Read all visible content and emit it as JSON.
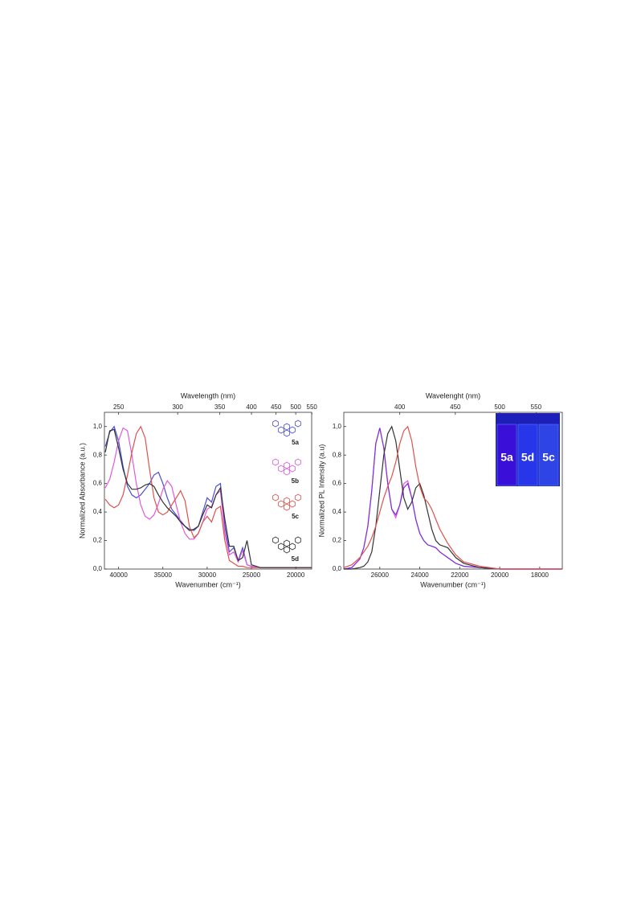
{
  "chart_data": [
    {
      "type": "line",
      "xlabel": "Wavenumber (cm⁻¹)",
      "ylabel": "Normalized Absorbance (a.u.)",
      "x2label": "Wavelength (nm)",
      "x": [
        41500,
        41000,
        40500,
        40000,
        39500,
        39000,
        38500,
        38000,
        37500,
        37000,
        36500,
        36000,
        35500,
        35000,
        34500,
        34000,
        33500,
        33000,
        32500,
        32000,
        31500,
        31000,
        30500,
        30000,
        29500,
        29000,
        28500,
        28000,
        27500,
        27000,
        26500,
        26000,
        25500,
        25000,
        24000,
        22000,
        20000,
        18200
      ],
      "series": [
        {
          "name": "5a",
          "color": "#4b4fd8",
          "values": [
            0.86,
            0.96,
            1.0,
            0.9,
            0.72,
            0.58,
            0.52,
            0.5,
            0.52,
            0.56,
            0.6,
            0.66,
            0.68,
            0.6,
            0.5,
            0.42,
            0.38,
            0.34,
            0.3,
            0.28,
            0.27,
            0.3,
            0.4,
            0.5,
            0.47,
            0.58,
            0.6,
            0.3,
            0.12,
            0.15,
            0.06,
            0.15,
            0.03,
            0.02,
            0.01,
            0.01,
            0.01,
            0.01
          ]
        },
        {
          "name": "5b",
          "color": "#e05ae0",
          "values": [
            0.57,
            0.63,
            0.75,
            0.9,
            0.99,
            0.97,
            0.8,
            0.6,
            0.45,
            0.37,
            0.35,
            0.38,
            0.46,
            0.56,
            0.62,
            0.58,
            0.45,
            0.33,
            0.25,
            0.21,
            0.21,
            0.25,
            0.33,
            0.42,
            0.44,
            0.52,
            0.55,
            0.25,
            0.1,
            0.12,
            0.05,
            0.13,
            0.03,
            0.02,
            0.01,
            0.01,
            0.01,
            0.01
          ]
        },
        {
          "name": "5c",
          "color": "#df514c",
          "values": [
            0.49,
            0.45,
            0.43,
            0.45,
            0.52,
            0.66,
            0.82,
            0.95,
            1.0,
            0.92,
            0.7,
            0.5,
            0.4,
            0.38,
            0.4,
            0.45,
            0.5,
            0.55,
            0.48,
            0.3,
            0.22,
            0.25,
            0.33,
            0.37,
            0.33,
            0.42,
            0.44,
            0.2,
            0.06,
            0.04,
            0.02,
            0.02,
            0.01,
            0.01,
            0.01,
            0.01,
            0.01,
            0.01
          ]
        },
        {
          "name": "5d",
          "color": "#333333",
          "values": [
            0.82,
            0.97,
            0.98,
            0.85,
            0.7,
            0.6,
            0.56,
            0.56,
            0.57,
            0.59,
            0.6,
            0.58,
            0.52,
            0.47,
            0.43,
            0.4,
            0.37,
            0.33,
            0.3,
            0.27,
            0.28,
            0.3,
            0.38,
            0.45,
            0.43,
            0.52,
            0.57,
            0.35,
            0.16,
            0.16,
            0.06,
            0.08,
            0.2,
            0.03,
            0.01,
            0.01,
            0.01,
            0.01
          ]
        }
      ],
      "xlim": [
        41600,
        18200
      ],
      "xticks": [
        40000,
        35000,
        30000,
        25000,
        20000
      ],
      "x2ticks": [
        250,
        300,
        350,
        400,
        450,
        500,
        550
      ],
      "ylim": [
        0,
        1.1
      ],
      "yticks": [
        {
          "value": 0,
          "label": "0,0"
        },
        {
          "value": 0.2,
          "label": "0,2"
        },
        {
          "value": 0.4,
          "label": "0,4"
        },
        {
          "value": 0.6,
          "label": "0,6"
        },
        {
          "value": 0.8,
          "label": "0,8"
        },
        {
          "value": 1.0,
          "label": "1,0"
        }
      ]
    },
    {
      "type": "line",
      "xlabel": "Wavenumber (cm⁻¹)",
      "ylabel": "Normalized PL Intensity (a.u)",
      "x2label": "Wavelenght (nm)",
      "x": [
        27800,
        27400,
        27000,
        26800,
        26600,
        26400,
        26200,
        26000,
        25800,
        25600,
        25400,
        25200,
        25000,
        24800,
        24600,
        24400,
        24200,
        24000,
        23800,
        23600,
        23400,
        23200,
        23000,
        22600,
        22200,
        21800,
        21000,
        20000,
        18000,
        16900
      ],
      "series": [
        {
          "color": "#e05ae0",
          "values": [
            0,
            0.01,
            0.07,
            0.15,
            0.3,
            0.55,
            0.88,
            0.99,
            0.85,
            0.6,
            0.42,
            0.36,
            0.45,
            0.6,
            0.62,
            0.5,
            0.35,
            0.25,
            0.2,
            0.17,
            0.16,
            0.15,
            0.12,
            0.08,
            0.04,
            0.02,
            0.01,
            0,
            0,
            0
          ]
        },
        {
          "color": "#7a2fe0",
          "values": [
            0,
            0.01,
            0.07,
            0.15,
            0.3,
            0.55,
            0.88,
            0.99,
            0.85,
            0.6,
            0.42,
            0.38,
            0.45,
            0.57,
            0.6,
            0.5,
            0.35,
            0.25,
            0.2,
            0.17,
            0.16,
            0.15,
            0.12,
            0.08,
            0.04,
            0.02,
            0.01,
            0,
            0,
            0
          ]
        },
        {
          "color": "#333333",
          "values": [
            0,
            0,
            0.01,
            0.02,
            0.05,
            0.12,
            0.3,
            0.55,
            0.8,
            0.95,
            1.0,
            0.9,
            0.7,
            0.5,
            0.42,
            0.47,
            0.57,
            0.6,
            0.52,
            0.4,
            0.28,
            0.2,
            0.17,
            0.15,
            0.08,
            0.04,
            0.01,
            0,
            0,
            0
          ]
        },
        {
          "color": "#df514c",
          "values": [
            0.01,
            0.03,
            0.08,
            0.12,
            0.16,
            0.22,
            0.3,
            0.4,
            0.5,
            0.58,
            0.65,
            0.75,
            0.88,
            0.97,
            1.0,
            0.9,
            0.72,
            0.58,
            0.5,
            0.47,
            0.42,
            0.35,
            0.28,
            0.18,
            0.1,
            0.05,
            0.02,
            0,
            0,
            0
          ]
        }
      ],
      "xlim": [
        27800,
        16870
      ],
      "xticks": [
        26000,
        24000,
        22000,
        20000,
        18000
      ],
      "x2ticks": [
        400,
        450,
        500,
        550
      ],
      "ylim": [
        0,
        1.1
      ],
      "yticks": [
        {
          "value": 0,
          "label": "0,0"
        },
        {
          "value": 0.2,
          "label": "0,2"
        },
        {
          "value": 0.4,
          "label": "0,4"
        },
        {
          "value": 0.6,
          "label": "0,6"
        },
        {
          "value": 0.8,
          "label": "0,8"
        },
        {
          "value": 1.0,
          "label": "1,0"
        }
      ],
      "inset_labels": [
        "5a",
        "5d",
        "5c"
      ]
    }
  ]
}
